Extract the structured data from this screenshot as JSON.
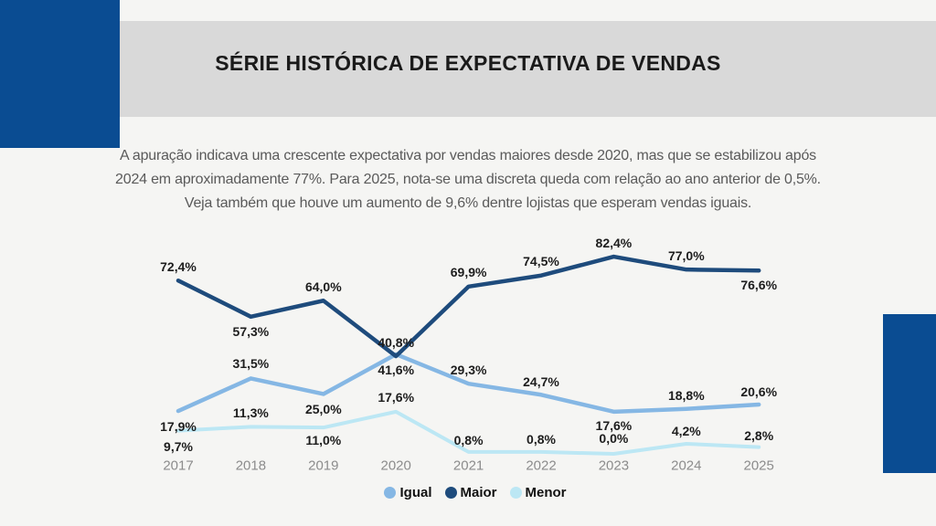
{
  "header": {
    "title": "SÉRIE HISTÓRICA DE EXPECTATIVA DE VENDAS"
  },
  "description": {
    "lines": [
      "A apuração indicava uma crescente expectativa por vendas maiores desde 2020, mas que se estabilizou após",
      "2024 em aproximadamente 77%. Para 2025, nota-se uma discreta queda com relação ao ano anterior de 0,5%.",
      "Veja também que houve um aumento de 9,6% dentre lojistas que esperam vendas iguais."
    ]
  },
  "colors": {
    "background": "#f5f5f3",
    "banner": "#d9d9d9",
    "accent_blue": "#0a4c92",
    "value_label": "#1d1d1d",
    "year_label": "#8c8c8c",
    "paragraph_text": "#5a5a5a"
  },
  "chart_data": {
    "type": "line",
    "title": "",
    "xlabel": "",
    "ylabel": "",
    "categories": [
      "2017",
      "2018",
      "2019",
      "2020",
      "2021",
      "2022",
      "2023",
      "2024",
      "2025"
    ],
    "series": [
      {
        "name": "Igual",
        "color": "#85b7e4",
        "stroke_width": 4.5,
        "values": [
          17.9,
          31.5,
          25.0,
          41.6,
          29.3,
          24.7,
          17.6,
          18.8,
          20.6
        ],
        "labels": [
          "17,9%",
          "31,5%",
          "25,0%",
          "41,6%",
          "29,3%",
          "24,7%",
          "17,6%",
          "18,8%",
          "20,6%"
        ],
        "label_dy": [
          17,
          -16,
          17,
          17,
          -15,
          -14,
          15,
          -15,
          -14
        ]
      },
      {
        "name": "Maior",
        "color": "#1e4b7c",
        "stroke_width": 4.5,
        "values": [
          72.4,
          57.3,
          64.0,
          40.8,
          69.9,
          74.5,
          82.4,
          77.0,
          76.6
        ],
        "labels": [
          "72,4%",
          "57,3%",
          "64,0%",
          "40,8%",
          "69,9%",
          "74,5%",
          "82,4%",
          "77,0%",
          "76,6%"
        ],
        "label_dy": [
          -15,
          16,
          -15,
          -15,
          -16,
          -16,
          -15,
          -15,
          16
        ]
      },
      {
        "name": "Menor",
        "color": "#bce7f4",
        "stroke_width": 4,
        "values": [
          9.7,
          11.3,
          11.0,
          17.6,
          0.8,
          0.8,
          0.0,
          4.2,
          2.8
        ],
        "labels": [
          "9,7%",
          "11,3%",
          "11,0%",
          "17,6%",
          "0,8%",
          "0,8%",
          "0,0%",
          "4,2%",
          "2,8%"
        ],
        "label_dy": [
          17,
          -15,
          14,
          -16,
          -13,
          -14,
          -17,
          -14,
          -13
        ]
      }
    ],
    "draw_order": [
      2,
      0,
      1
    ],
    "ylim": [
      0,
      95
    ],
    "grid": false,
    "legend_position": "bottom"
  }
}
